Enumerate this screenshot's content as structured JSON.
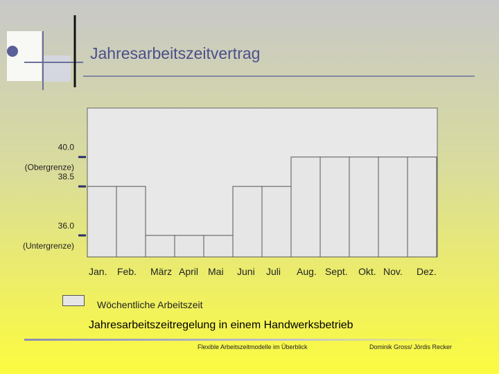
{
  "header": {
    "title": "Jahresarbeitszeitvertrag"
  },
  "chart_data": {
    "type": "bar",
    "categories": [
      "Jan.",
      "Feb.",
      "März",
      "April",
      "Mai",
      "Juni",
      "Juli",
      "Aug.",
      "Sept.",
      "Okt.",
      "Nov.",
      "Dez."
    ],
    "series": [
      {
        "name": "Wöchentliche Arbeitszeit",
        "values": [
          38.5,
          38.5,
          36.0,
          36.0,
          36.0,
          38.5,
          38.5,
          40.0,
          40.0,
          40.0,
          40.0,
          40.0
        ]
      }
    ],
    "y_ticks": [
      {
        "value": 40.0,
        "label": "40.0",
        "note": "(Obergrenze)"
      },
      {
        "value": 38.5,
        "label": "38.5",
        "note": ""
      },
      {
        "value": 36.0,
        "label": "36.0",
        "note": "(Untergrenze)"
      }
    ],
    "title": "",
    "xlabel": "",
    "ylabel": "",
    "ylim": [
      34.9,
      42.5
    ],
    "bar_color": "#e6e6e6",
    "legend": "bottom-left"
  },
  "legend": {
    "label": "Wöchentliche Arbeitszeit"
  },
  "subtitle": "Jahresarbeitszeitregelung in einem Handwerksbetrieb",
  "footer": {
    "left": "Flexible Arbeitszeitmodelle im Überblick",
    "right": "Dominik Gross/ Jördis Recker"
  },
  "colors": {
    "title": "#4a4f8a",
    "accent": "#5a5f9a"
  }
}
